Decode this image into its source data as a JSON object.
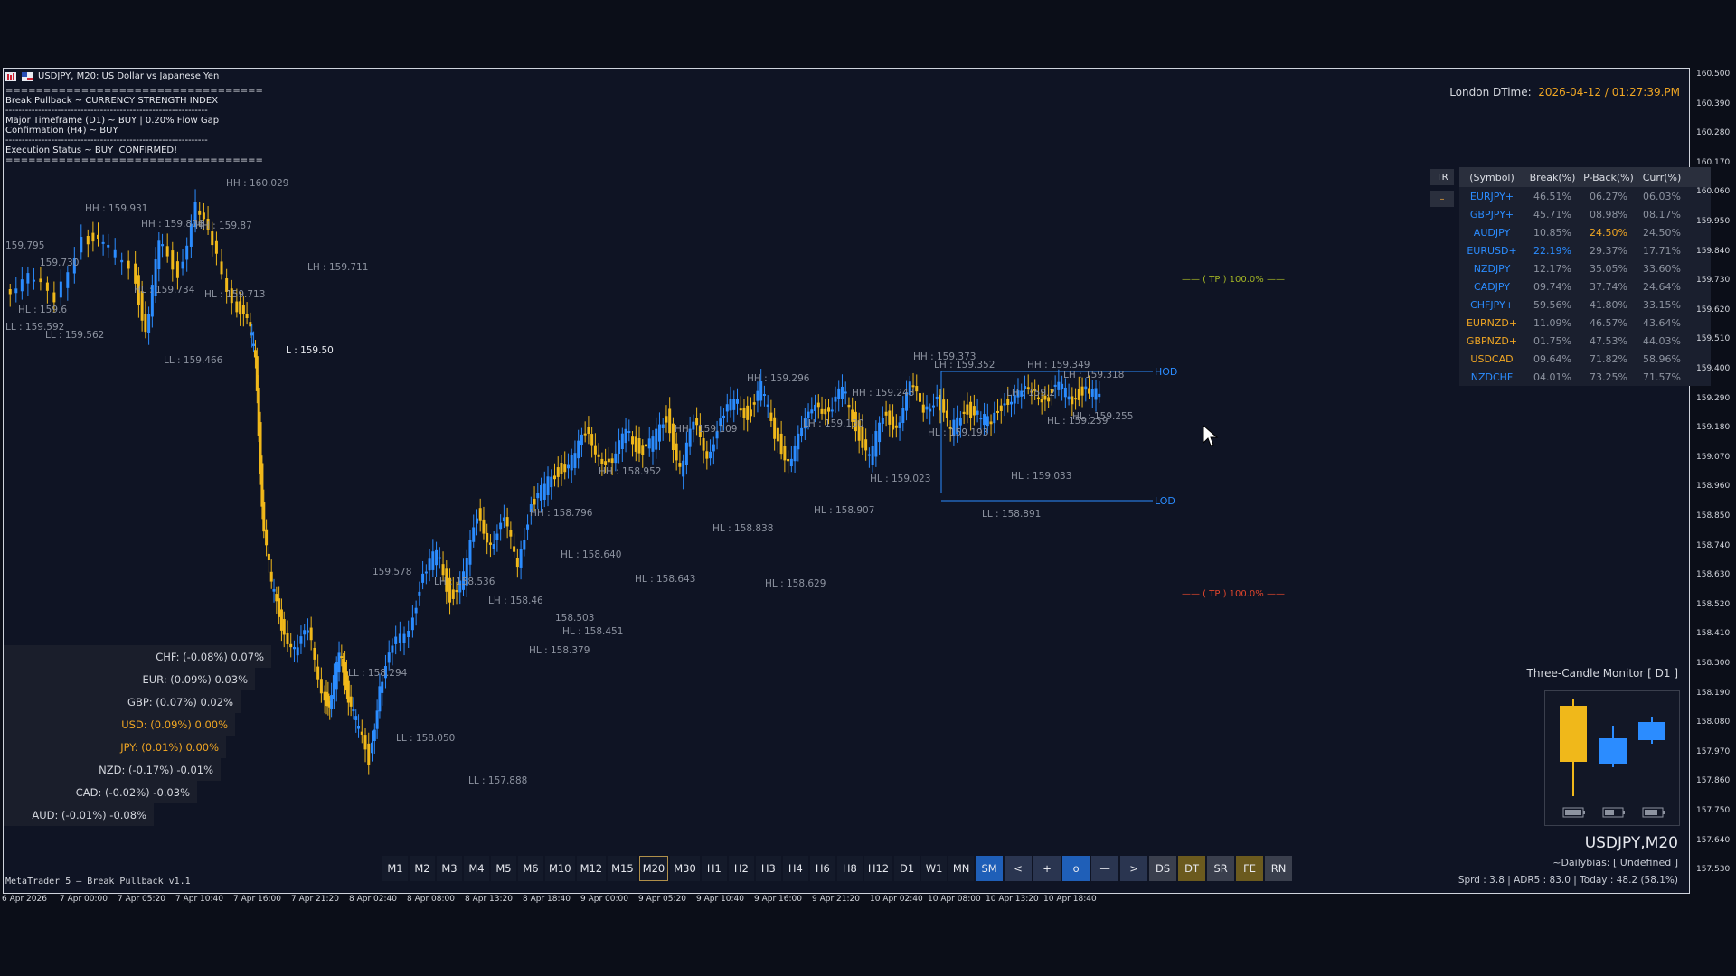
{
  "header": {
    "title": "USDJPY, M20:  US Dollar vs Japanese Yen"
  },
  "info_block": {
    "sep1": "==================================",
    "line1": "Break Pullback ~ CURRENCY STRENGTH INDEX",
    "sep2": "--------------------------------------------------------------",
    "line2": "Major Timeframe (D1) ~ BUY | 0.20% Flow Gap",
    "line3": "Confirmation (H4) ~ BUY",
    "sep3": "--------------------------------------------------------------",
    "line4": "Execution Status ~ BUY  CONFIRMED!",
    "sep4": "=================================="
  },
  "london": {
    "label": "London DTime:",
    "value": "2026-04-12 / 01:27:39.PM"
  },
  "strength_table": {
    "tr_label": "TR",
    "min_label": "–",
    "headers": [
      "(Symbol)",
      "Break(%)",
      "P-Back(%)",
      "Curr(%)"
    ],
    "rows": [
      {
        "sym": "EURJPY+",
        "b": "46.51%",
        "p": "06.27%",
        "c": "06.03%",
        "color": "#2b8cff",
        "bc": "#8d93a0",
        "pc": "#8d93a0"
      },
      {
        "sym": "GBPJPY+",
        "b": "45.71%",
        "p": "08.98%",
        "c": "08.17%",
        "color": "#2b8cff",
        "bc": "#8d93a0",
        "pc": "#8d93a0"
      },
      {
        "sym": "AUDJPY",
        "b": "10.85%",
        "p": "24.50%",
        "c": "24.50%",
        "color": "#2b8cff",
        "bc": "#8d93a0",
        "pc": "#f0a623"
      },
      {
        "sym": "EURUSD+",
        "b": "22.19%",
        "p": "29.37%",
        "c": "17.71%",
        "color": "#2b8cff",
        "bc": "#2b8cff",
        "pc": "#8d93a0"
      },
      {
        "sym": "NZDJPY",
        "b": "12.17%",
        "p": "35.05%",
        "c": "33.60%",
        "color": "#2b8cff",
        "bc": "#8d93a0",
        "pc": "#8d93a0"
      },
      {
        "sym": "CADJPY",
        "b": "09.74%",
        "p": "37.74%",
        "c": "24.64%",
        "color": "#2b8cff",
        "bc": "#8d93a0",
        "pc": "#8d93a0"
      },
      {
        "sym": "CHFJPY+",
        "b": "59.56%",
        "p": "41.80%",
        "c": "33.15%",
        "color": "#2b8cff",
        "bc": "#8d93a0",
        "pc": "#8d93a0"
      },
      {
        "sym": "EURNZD+",
        "b": "11.09%",
        "p": "46.57%",
        "c": "43.64%",
        "color": "#f0a623",
        "bc": "#8d93a0",
        "pc": "#8d93a0"
      },
      {
        "sym": "GBPNZD+",
        "b": "01.75%",
        "p": "47.53%",
        "c": "44.03%",
        "color": "#f0a623",
        "bc": "#8d93a0",
        "pc": "#8d93a0"
      },
      {
        "sym": "USDCAD",
        "b": "09.64%",
        "p": "71.82%",
        "c": "58.96%",
        "color": "#f0a623",
        "bc": "#8d93a0",
        "pc": "#8d93a0"
      },
      {
        "sym": "NZDCHF",
        "b": "04.01%",
        "p": "73.25%",
        "c": "71.57%",
        "color": "#2b8cff",
        "bc": "#8d93a0",
        "pc": "#8d93a0"
      }
    ]
  },
  "currency_strength": [
    {
      "label": "CHF: (-0.08%)  0.07%",
      "color": "#d4d7de",
      "level": 0.07
    },
    {
      "label": "EUR: (0.09%)  0.03%",
      "color": "#d4d7de",
      "level": 0.03
    },
    {
      "label": "GBP: (0.07%)  0.02%",
      "color": "#d4d7de",
      "level": 0.02
    },
    {
      "label": "USD: (0.09%)  0.00%",
      "color": "#f0a623",
      "level": 0.0
    },
    {
      "label": "JPY: (0.01%)  0.00%",
      "color": "#f0a623",
      "level": 0.0
    },
    {
      "label": "NZD: (-0.17%)  -0.01%",
      "color": "#d4d7de",
      "level": -0.01
    },
    {
      "label": "CAD: (-0.02%)  -0.03%",
      "color": "#d4d7de",
      "level": -0.03
    },
    {
      "label": "AUD: (-0.01%)  -0.08%",
      "color": "#d4d7de",
      "level": -0.08
    }
  ],
  "timeframes": {
    "items": [
      "M1",
      "M2",
      "M3",
      "M4",
      "M5",
      "M6",
      "M10",
      "M12",
      "M15",
      "M20",
      "M30",
      "H1",
      "H2",
      "H3",
      "H4",
      "H6",
      "H8",
      "H12",
      "D1",
      "W1",
      "MN"
    ],
    "active": "M20",
    "tools": [
      {
        "label": "SM",
        "bg": "#1f5fb8"
      },
      {
        "label": "<",
        "bg": "#2a3550"
      },
      {
        "label": "+",
        "bg": "#2a3550"
      },
      {
        "label": "o",
        "bg": "#1f5fb8"
      },
      {
        "label": "—",
        "bg": "#2a3550"
      },
      {
        "label": ">",
        "bg": "#2a3550"
      },
      {
        "label": "DS",
        "bg": "#3a3f4d"
      },
      {
        "label": "DT",
        "bg": "#6b5a1e"
      },
      {
        "label": "SR",
        "bg": "#3a3f4d"
      },
      {
        "label": "FE",
        "bg": "#6b5a1e"
      },
      {
        "label": "RN",
        "bg": "#3a3f4d"
      }
    ]
  },
  "footer": {
    "platform": "MetaTrader 5 — Break Pullback v1.1"
  },
  "three_candle": {
    "title": "Three-Candle Monitor [ D1 ]"
  },
  "symbol_info": {
    "symbol": "USDJPY,M20",
    "bias": "~Dailybias: [ Undefined ]",
    "stats": "Sprd : 3.8 | ADR5 : 83.0 | Today : 48.2 (58.1%)"
  },
  "price_axis": [
    "160.500",
    "160.390",
    "160.280",
    "160.170",
    "160.060",
    "159.950",
    "159.840",
    "159.730",
    "159.620",
    "159.510",
    "159.400",
    "159.290",
    "159.180",
    "159.070",
    "158.960",
    "158.850",
    "158.740",
    "158.630",
    "158.520",
    "158.410",
    "158.300",
    "158.190",
    "158.080",
    "157.970",
    "157.860",
    "157.750",
    "157.640",
    "157.530"
  ],
  "time_axis": [
    "6 Apr 2026",
    "7 Apr 00:00",
    "7 Apr 05:20",
    "7 Apr 10:40",
    "7 Apr 16:00",
    "7 Apr 21:20",
    "8 Apr 02:40",
    "8 Apr 08:00",
    "8 Apr 13:20",
    "8 Apr 18:40",
    "9 Apr 00:00",
    "9 Apr 05:20",
    "9 Apr 10:40",
    "9 Apr 16:00",
    "9 Apr 21:20",
    "10 Apr 02:40",
    "10 Apr 08:00",
    "10 Apr 13:20",
    "10 Apr 18:40"
  ],
  "levels": {
    "tp_up": "—— ( TP ) 100.0% ——",
    "tp_down": "—— ( TP ) 100.0% ——",
    "hod": "HOD",
    "lod": "LOD"
  },
  "swing_labels": [
    {
      "t": "HH : 160.029",
      "c": "#8d93a0"
    },
    {
      "t": "HH : 159.931",
      "c": "#8d93a0"
    },
    {
      "t": "HH : 159.876",
      "c": "#8d93a0"
    },
    {
      "t": "HH : 159.87",
      "c": "#8d93a0"
    },
    {
      "t": "LH : 159.711",
      "c": "#8d93a0"
    },
    {
      "t": "HL : 159.734",
      "c": "#8d93a0"
    },
    {
      "t": "HL : 159.713",
      "c": "#8d93a0"
    },
    {
      "t": "HL : 159.6",
      "c": "#8d93a0"
    },
    {
      "t": "LL : 159.592",
      "c": "#8d93a0"
    },
    {
      "t": "LL : 159.562",
      "c": "#8d93a0"
    },
    {
      "t": "LL : 159.466",
      "c": "#8d93a0"
    },
    {
      "t": "L : 159.50",
      "c": "#e6e8ee"
    },
    {
      "t": "159.578",
      "c": "#8d93a0"
    },
    {
      "t": "LH : 158.536",
      "c": "#8d93a0"
    },
    {
      "t": "LH : 158.46",
      "c": "#8d93a0"
    },
    {
      "t": "LL : 158.294",
      "c": "#8d93a0"
    },
    {
      "t": "LL : 158.050",
      "c": "#8d93a0"
    },
    {
      "t": "LL : 157.888",
      "c": "#8d93a0"
    },
    {
      "t": "HL : 158.379",
      "c": "#8d93a0"
    },
    {
      "t": "HL : 158.451",
      "c": "#8d93a0"
    },
    {
      "t": "158.503",
      "c": "#8d93a0"
    },
    {
      "t": "HH : 158.796",
      "c": "#8d93a0"
    },
    {
      "t": "HL : 158.640",
      "c": "#8d93a0"
    },
    {
      "t": "HH : 158.952",
      "c": "#8d93a0"
    },
    {
      "t": "HL : 158.643",
      "c": "#8d93a0"
    },
    {
      "t": "HH : 159.109",
      "c": "#8d93a0"
    },
    {
      "t": "HL : 158.838",
      "c": "#8d93a0"
    },
    {
      "t": "HH : 159.296",
      "c": "#8d93a0"
    },
    {
      "t": "LH : 159.130",
      "c": "#8d93a0"
    },
    {
      "t": "HL : 158.907",
      "c": "#8d93a0"
    },
    {
      "t": "HL : 158.629",
      "c": "#8d93a0"
    },
    {
      "t": "HH : 159.243",
      "c": "#8d93a0"
    },
    {
      "t": "HL : 159.023",
      "c": "#8d93a0"
    },
    {
      "t": "HH : 159.373",
      "c": "#8d93a0"
    },
    {
      "t": "LH : 159.352",
      "c": "#8d93a0"
    },
    {
      "t": "HL : 159.193",
      "c": "#8d93a0"
    },
    {
      "t": "HH : 159.349",
      "c": "#8d93a0"
    },
    {
      "t": "LH : 159.318",
      "c": "#8d93a0"
    },
    {
      "t": "LH : 159.2",
      "c": "#8d93a0"
    },
    {
      "t": "HL : 159.239",
      "c": "#8d93a0"
    },
    {
      "t": "HL : 159.255",
      "c": "#8d93a0"
    },
    {
      "t": "HL : 159.033",
      "c": "#8d93a0"
    },
    {
      "t": "LL : 158.891",
      "c": "#8d93a0"
    },
    {
      "t": "159.795",
      "c": "#8d93a0"
    },
    {
      "t": "159.730",
      "c": "#8d93a0"
    }
  ]
}
